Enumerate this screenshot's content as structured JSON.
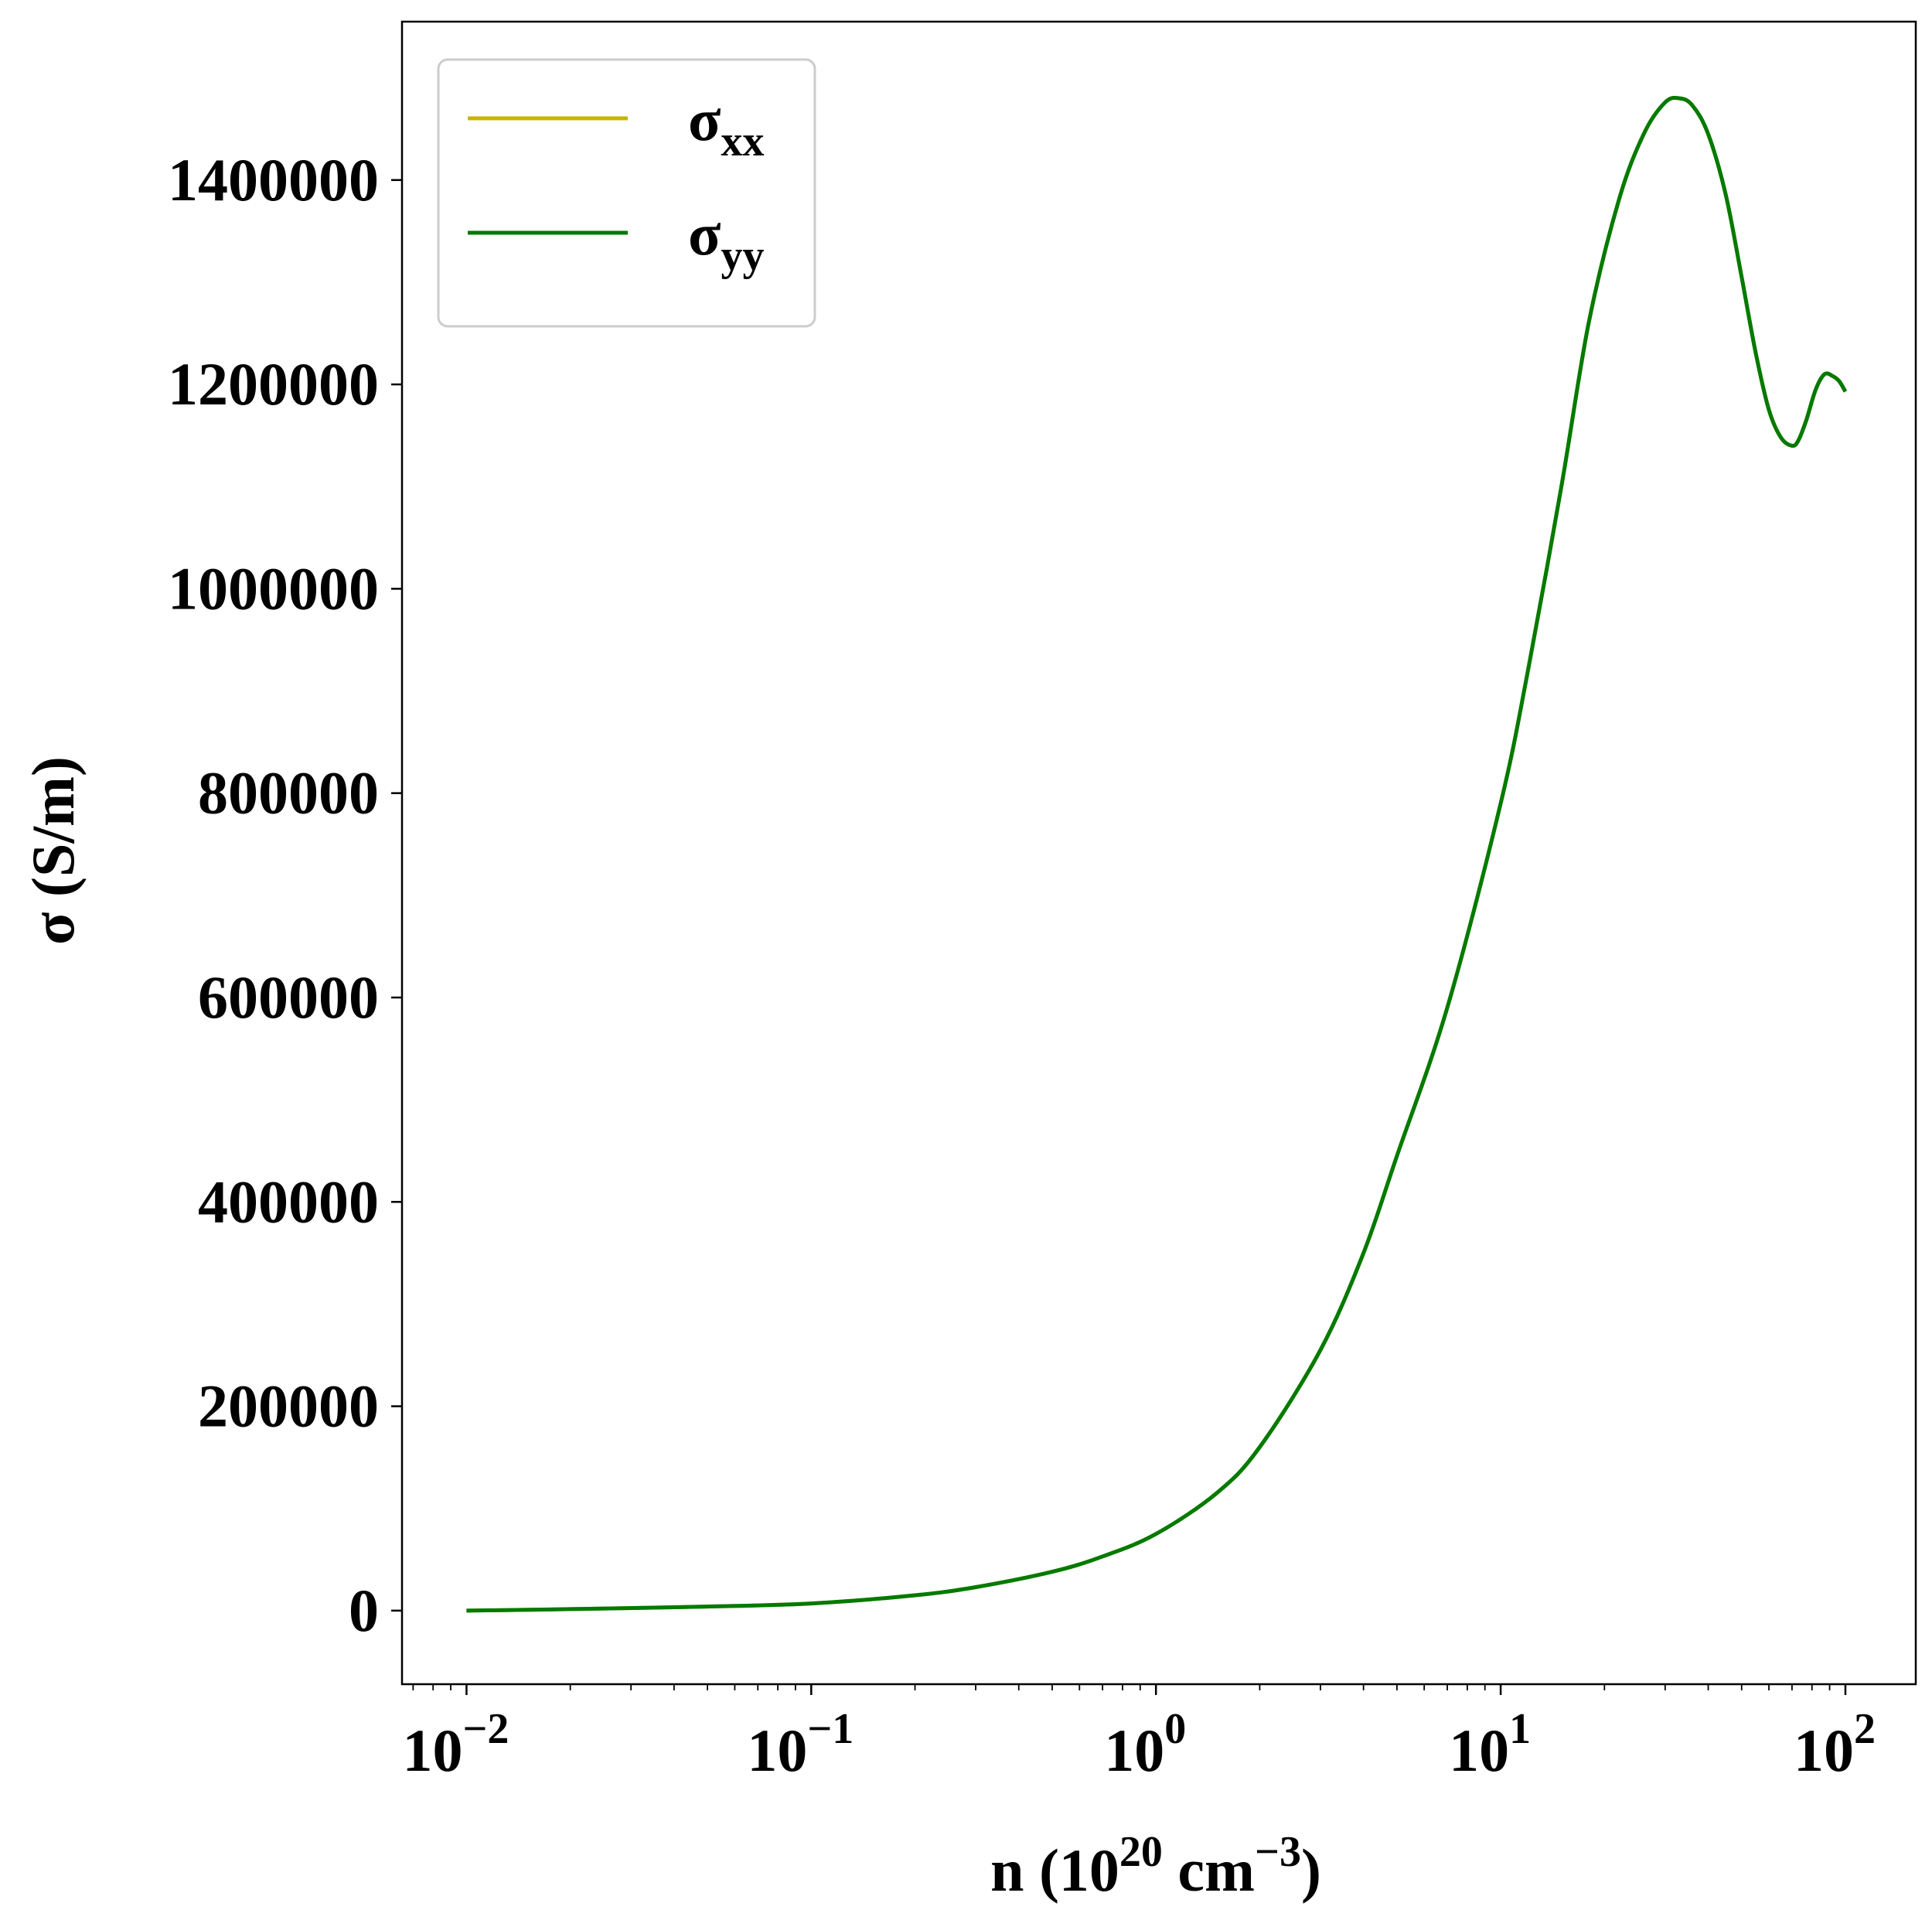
{
  "chart_data": {
    "type": "line",
    "title": "",
    "xlabel": {
      "main": "n (10",
      "exp1": "20",
      "mid": " cm",
      "exp2": "−3",
      "end": ")"
    },
    "ylabel": "σ (S/m)",
    "xscale": "log",
    "xlim": [
      0.0065,
      160
    ],
    "ylim": [
      -72000,
      1555000
    ],
    "grid": false,
    "legend_position": "top-left",
    "x_ticks": [
      {
        "value": 0.01,
        "base": "10",
        "exp": "−2"
      },
      {
        "value": 0.1,
        "base": "10",
        "exp": "−1"
      },
      {
        "value": 1,
        "base": "10",
        "exp": "0"
      },
      {
        "value": 10,
        "base": "10",
        "exp": "1"
      },
      {
        "value": 100,
        "base": "10",
        "exp": "2"
      }
    ],
    "y_ticks": [
      {
        "value": 0,
        "label": "0"
      },
      {
        "value": 200000,
        "label": "200000"
      },
      {
        "value": 400000,
        "label": "400000"
      },
      {
        "value": 600000,
        "label": "600000"
      },
      {
        "value": 800000,
        "label": "800000"
      },
      {
        "value": 1000000,
        "label": "1000000"
      },
      {
        "value": 1200000,
        "label": "1200000"
      },
      {
        "value": 1400000,
        "label": "1400000"
      }
    ],
    "x": [
      0.01,
      0.02,
      0.05,
      0.1,
      0.2,
      0.3,
      0.5,
      0.7,
      1.0,
      1.5,
      2.0,
      3.0,
      4.0,
      5.0,
      7.0,
      10.0,
      12.0,
      15.0,
      18.0,
      22.0,
      26.0,
      30.0,
      33.0,
      36.0,
      40.0,
      45.0,
      50.0,
      55.0,
      60.0,
      65.0,
      70.0,
      73.0,
      77.0,
      82.0,
      87.0,
      92.0,
      96.0,
      100.0
    ],
    "series": [
      {
        "name_base": "σ",
        "name_sub": "xx",
        "color": "#c8b400",
        "values": [
          0,
          1500,
          4000,
          7000,
          15000,
          23000,
          38000,
          53000,
          75000,
          115000,
          160000,
          255000,
          350000,
          445000,
          590000,
          790000,
          920000,
          1100000,
          1260000,
          1380000,
          1445000,
          1476000,
          1480000,
          1473000,
          1445000,
          1385000,
          1305000,
          1230000,
          1175000,
          1148000,
          1140000,
          1145000,
          1165000,
          1195000,
          1210000,
          1208000,
          1203000,
          1193000
        ]
      },
      {
        "name_base": "σ",
        "name_sub": "yy",
        "color": "#007a00",
        "values": [
          0,
          1500,
          4000,
          7000,
          15000,
          23000,
          38000,
          53000,
          75000,
          115000,
          160000,
          255000,
          350000,
          445000,
          590000,
          790000,
          920000,
          1100000,
          1260000,
          1380000,
          1445000,
          1476000,
          1480000,
          1473000,
          1445000,
          1385000,
          1305000,
          1230000,
          1175000,
          1148000,
          1140000,
          1145000,
          1165000,
          1195000,
          1210000,
          1208000,
          1203000,
          1193000
        ]
      }
    ]
  }
}
